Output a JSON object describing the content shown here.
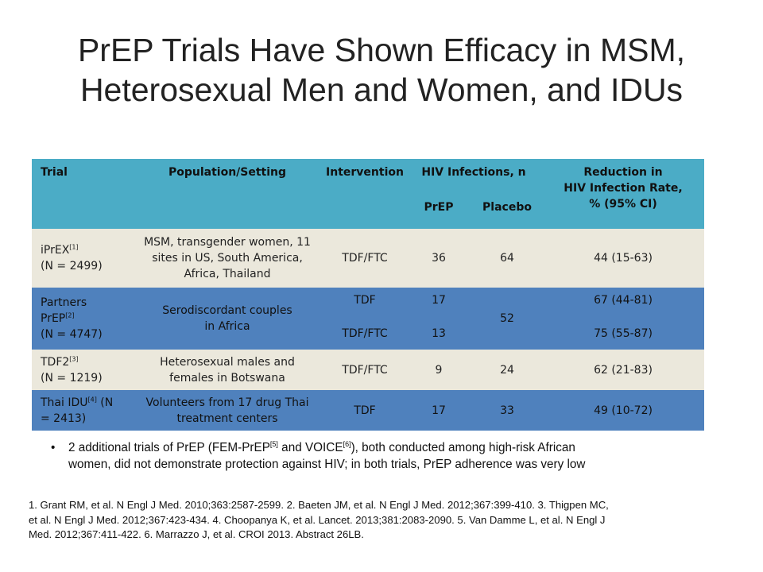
{
  "title": {
    "line1": "PrEP Trials Have Shown Efficacy in MSM,",
    "line2": "Heterosexual Men and Women, and IDUs"
  },
  "table": {
    "headers": {
      "trial": "Trial",
      "population": "Population/Setting",
      "intervention": "Intervention",
      "hiv_infections": "HIV Infections, n",
      "prep": "PrEP",
      "placebo": "Placebo",
      "reduction_line1": "Reduction in",
      "reduction_line2": "HIV Infection Rate,",
      "reduction_line3": "% (95% CI)"
    },
    "rows": [
      {
        "trial_name": "iPrEX",
        "ref": "[1]",
        "n": "(N = 2499)",
        "population": [
          "MSM, transgender women, 11",
          "sites in US, South America,",
          "Africa, Thailand"
        ],
        "intervention": "TDF/FTC",
        "prep": "36",
        "placebo": "64",
        "reduction": "44 (15-63)"
      },
      {
        "trial_name_line1": "Partners",
        "trial_name_line2": "PrEP",
        "ref": "[2]",
        "n": "(N = 4747)",
        "population": [
          "Serodiscordant couples",
          "in Africa"
        ],
        "arms": [
          {
            "intervention": "TDF",
            "prep": "17",
            "reduction": "67 (44-81)"
          },
          {
            "intervention": "TDF/FTC",
            "prep": "13",
            "reduction": "75 (55-87)"
          }
        ],
        "placebo": "52"
      },
      {
        "trial_name": "TDF2",
        "ref": "[3]",
        "n": "(N = 1219)",
        "population": [
          "Heterosexual males and",
          "females in Botswana"
        ],
        "intervention": "TDF/FTC",
        "prep": "9",
        "placebo": "24",
        "reduction": "62 (21-83)"
      },
      {
        "trial_name": "Thai IDU",
        "ref": "[4]",
        "n_part1": " (N",
        "n_part2": "= 2413)",
        "population": [
          "Volunteers from 17 drug Thai",
          "treatment centers"
        ],
        "intervention": "TDF",
        "prep": "17",
        "placebo": "33",
        "reduction": "49 (10-72)"
      }
    ]
  },
  "bullet": {
    "symbol": "•",
    "part1": "2 additional trials of PrEP (FEM-PrEP",
    "ref1": "[5]",
    "part2": " and VOICE",
    "ref2": "[6]",
    "part3": "), both conducted among high-risk African",
    "line2": "women, did not demonstrate protection against HIV; in both trials, PrEP adherence was very low"
  },
  "references": [
    "1. Grant RM, et al. N Engl J Med. 2010;363:2587-2599. 2. Baeten JM, et al. N Engl J Med. 2012;367:399-410. 3. Thigpen MC,",
    "et al. N Engl J Med. 2012;367:423-434. 4. Choopanya K, et al. Lancet. 2013;381:2083-2090. 5. Van Damme L, et al. N Engl J",
    "Med. 2012;367:411-422. 6. Marrazzo J, et al. CROI 2013. Abstract 26LB."
  ],
  "colors": {
    "header": "#4bacc6",
    "row_light": "#ebe8dc",
    "row_dark": "#4f81bd"
  }
}
